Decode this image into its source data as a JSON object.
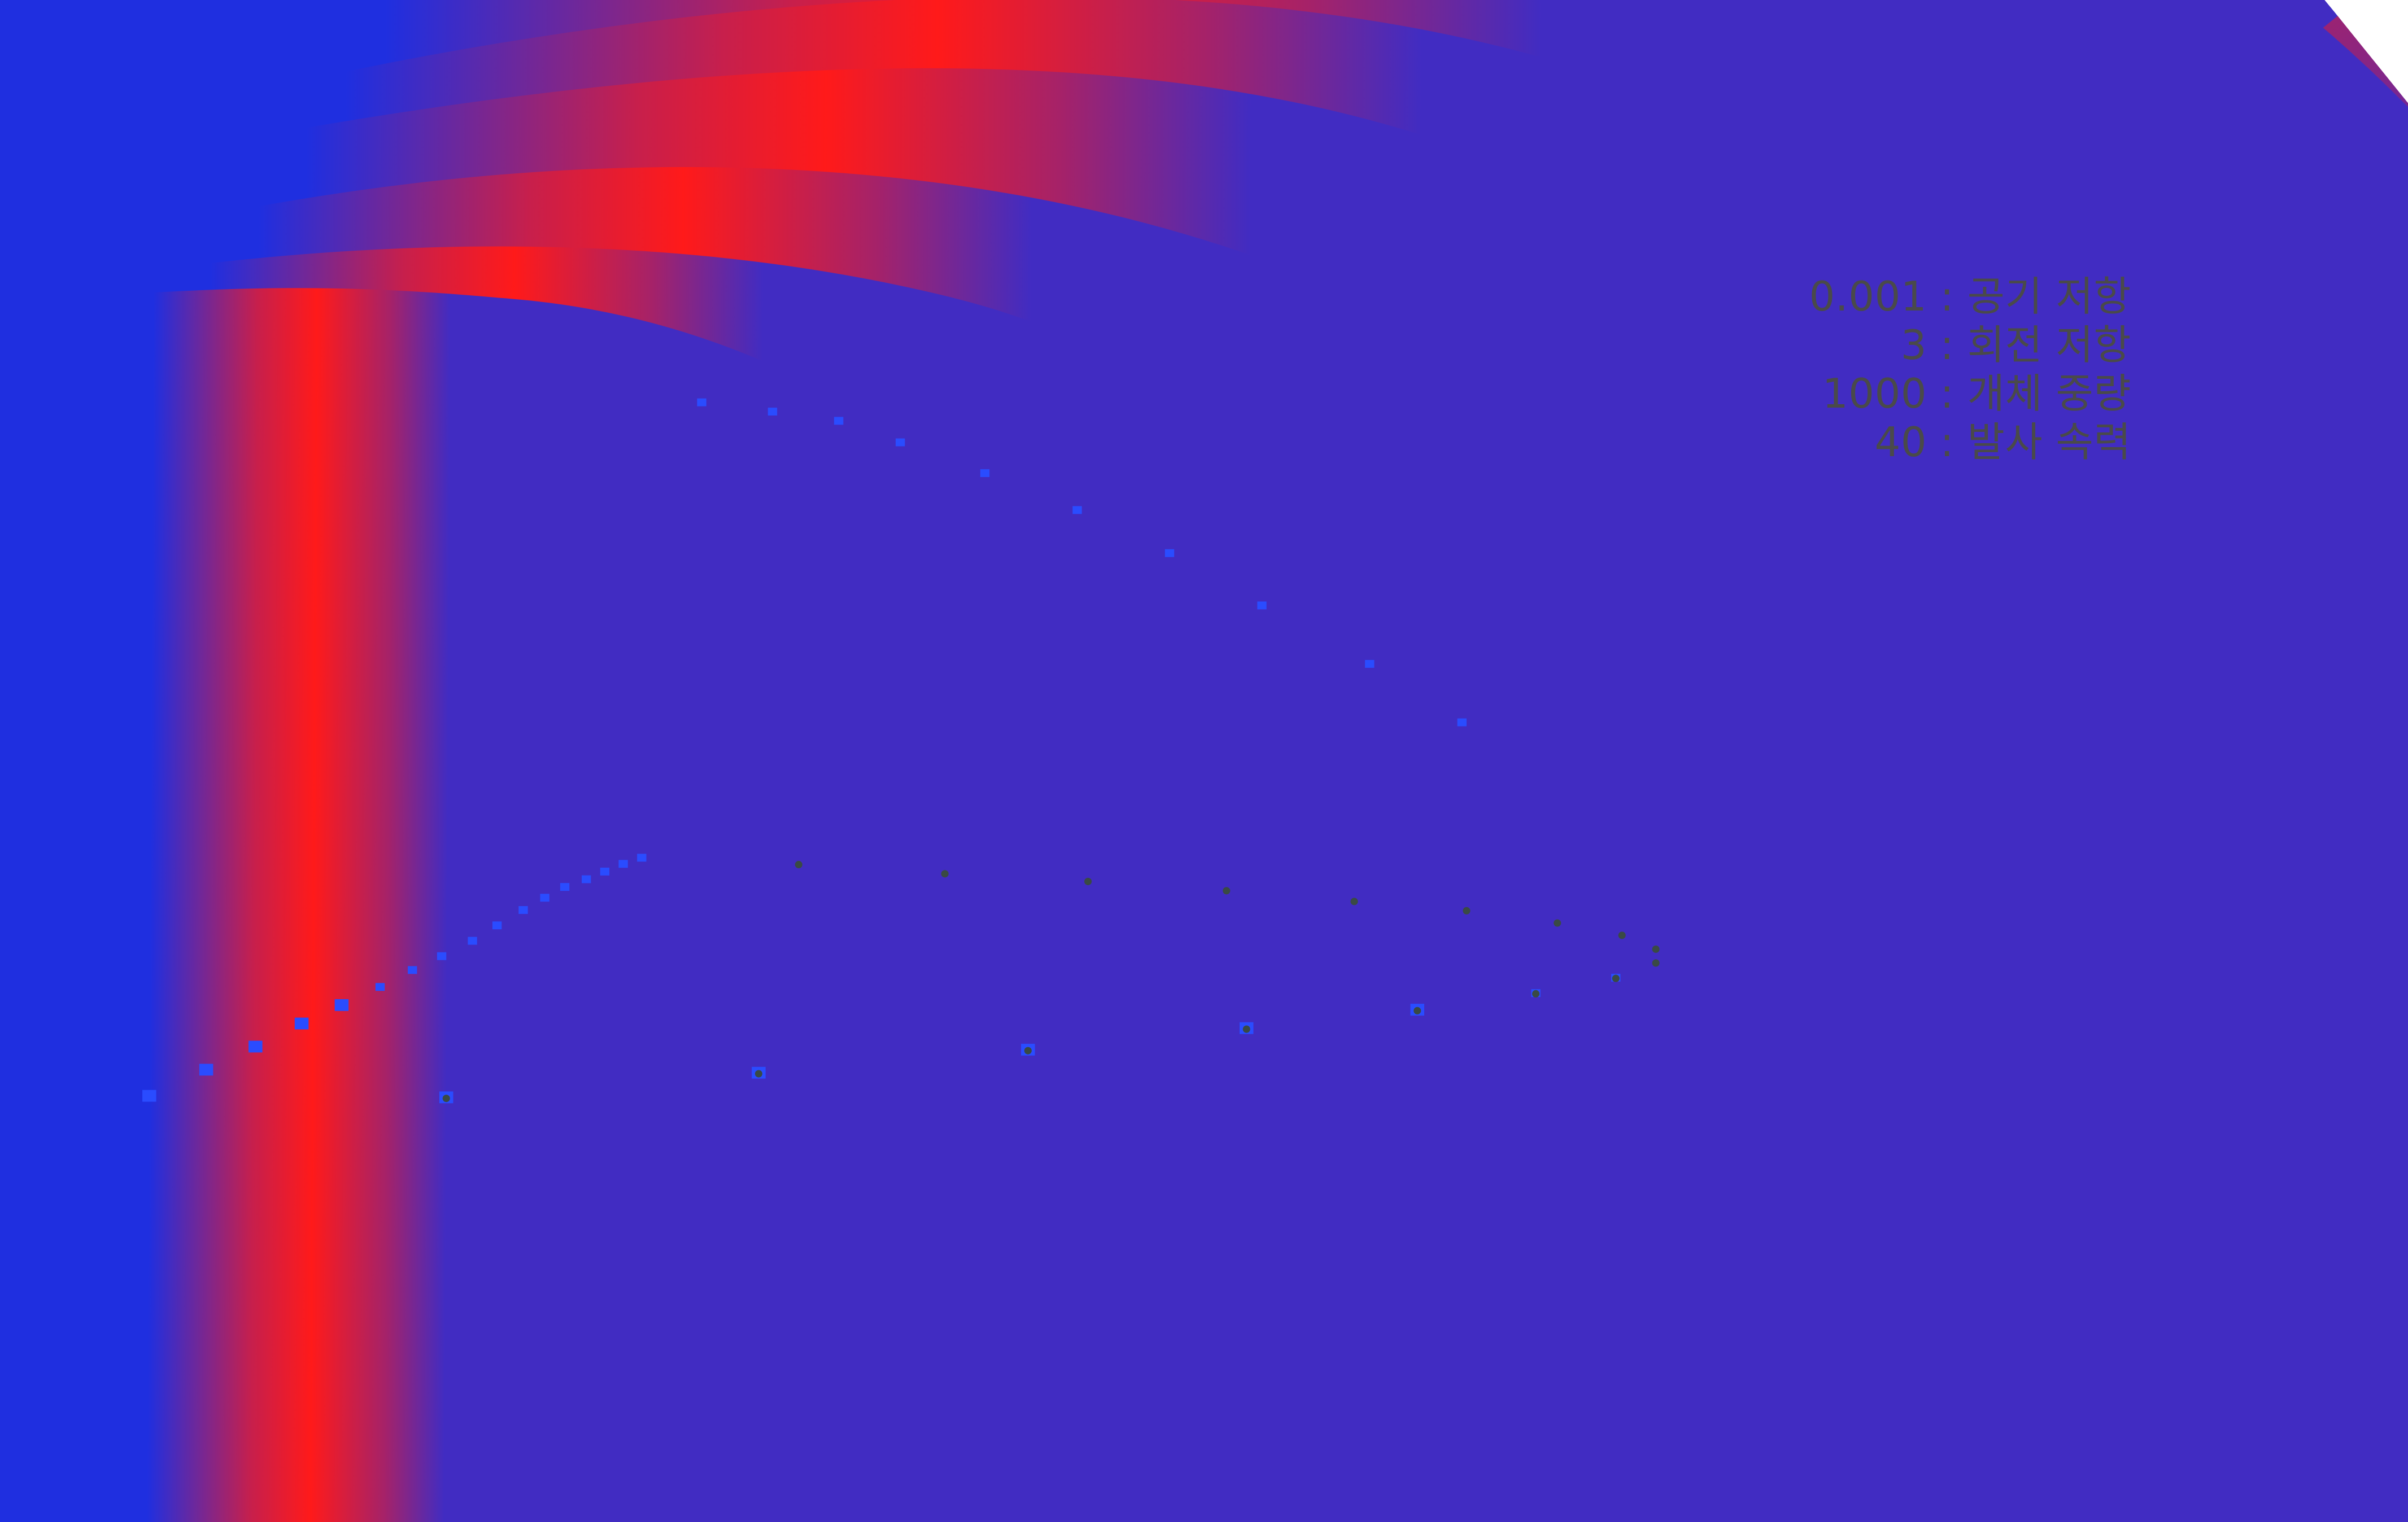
{
  "parameters": [
    {
      "value": "0.001",
      "separator": ":",
      "label": "공기 저항"
    },
    {
      "value": "3",
      "separator": ":",
      "label": "회전 저항"
    },
    {
      "value": "1000",
      "separator": ":",
      "label": "개체 중량"
    },
    {
      "value": "40",
      "separator": ":",
      "label": "발사 속력"
    }
  ],
  "colors": {
    "background": "#ffffff",
    "trajectory_start": "#1f2fe0",
    "trajectory_peak": "#ff1a1a",
    "marker": "#2a4cff",
    "end_ball": "#3a4a44",
    "text": "#4a4a4a"
  },
  "icons": {
    "launch_marker": "blue-square",
    "impact_marker": "blue-square",
    "end_marker": "dark-sphere"
  }
}
